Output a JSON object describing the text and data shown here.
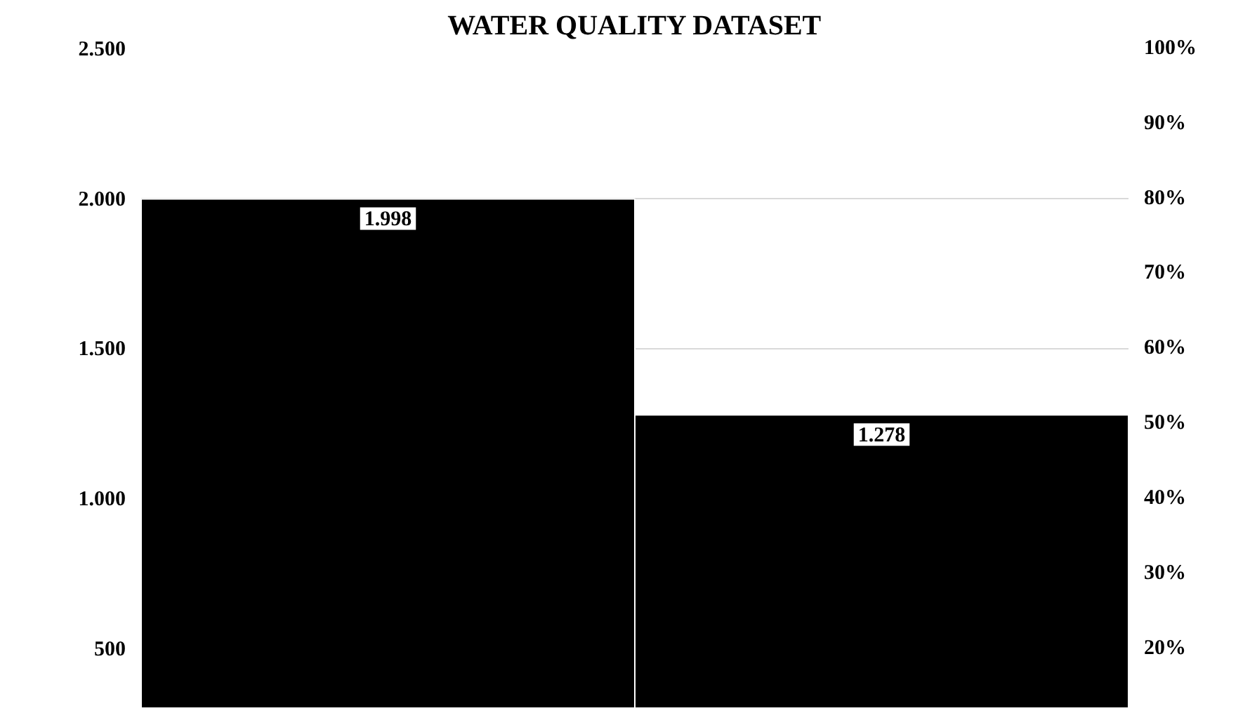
{
  "chart_data": {
    "type": "bar",
    "title": "WATER QUALITY DATASET",
    "categories": [
      null,
      null
    ],
    "series": [
      {
        "color": "#000000",
        "values": [
          1998,
          1278
        ],
        "value_labels": [
          "1.998",
          "1.278"
        ]
      }
    ],
    "ylim": [
      300,
      2500
    ],
    "yticks": [
      {
        "value": 500,
        "label": "500"
      },
      {
        "value": 1000,
        "label": "1.000"
      },
      {
        "value": 1500,
        "label": "1.500"
      },
      {
        "value": 2000,
        "label": "2.000"
      },
      {
        "value": 2500,
        "label": "2.500"
      }
    ],
    "y2lim": [
      12,
      100
    ],
    "y2ticks": [
      {
        "value": 20,
        "label": "20%"
      },
      {
        "value": 30,
        "label": "30%"
      },
      {
        "value": 40,
        "label": "40%"
      },
      {
        "value": 50,
        "label": "50%"
      },
      {
        "value": 60,
        "label": "60%"
      },
      {
        "value": 70,
        "label": "70%"
      },
      {
        "value": 80,
        "label": "80%"
      },
      {
        "value": 90,
        "label": "90%"
      },
      {
        "value": 100,
        "label": "100%"
      }
    ],
    "grid": "y"
  }
}
